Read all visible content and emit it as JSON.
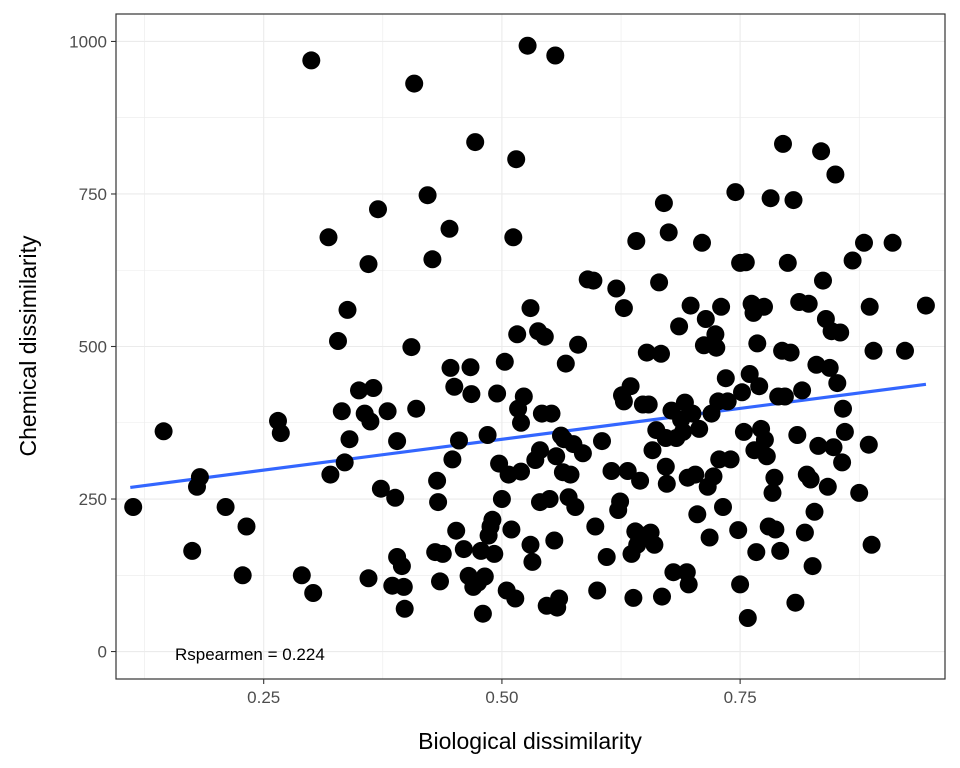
{
  "chart_data": {
    "type": "scatter",
    "title": "",
    "xlabel": "Biological dissimilarity",
    "ylabel": "Chemical dissimilarity",
    "xlim": [
      0.095,
      0.965
    ],
    "ylim": [
      -45,
      1045
    ],
    "x_ticks": [
      0.25,
      0.5,
      0.75
    ],
    "x_tick_labels": [
      "0.25",
      "0.50",
      "0.75"
    ],
    "y_ticks": [
      0,
      250,
      500,
      750,
      1000
    ],
    "y_tick_labels": [
      "0",
      "250",
      "500",
      "750",
      "1000"
    ],
    "grid": true,
    "legend": "none",
    "colors": {
      "points": "#000000",
      "trend": "#3366ff",
      "grid": "#ebebeb",
      "panel_border": "#333333"
    },
    "annotation": "Rspearmen = 0.224",
    "trend_line": {
      "x": [
        0.11,
        0.945
      ],
      "y": [
        269,
        438
      ]
    },
    "points": [
      [
        0.113,
        237
      ],
      [
        0.145,
        361
      ],
      [
        0.175,
        165
      ],
      [
        0.18,
        270
      ],
      [
        0.183,
        286
      ],
      [
        0.21,
        237
      ],
      [
        0.228,
        125
      ],
      [
        0.232,
        205
      ],
      [
        0.265,
        378
      ],
      [
        0.268,
        358
      ],
      [
        0.29,
        125
      ],
      [
        0.3,
        969
      ],
      [
        0.302,
        96
      ],
      [
        0.318,
        679
      ],
      [
        0.32,
        290
      ],
      [
        0.328,
        509
      ],
      [
        0.332,
        394
      ],
      [
        0.335,
        310
      ],
      [
        0.338,
        560
      ],
      [
        0.34,
        348
      ],
      [
        0.35,
        428
      ],
      [
        0.356,
        390
      ],
      [
        0.36,
        635
      ],
      [
        0.36,
        120
      ],
      [
        0.362,
        377
      ],
      [
        0.365,
        432
      ],
      [
        0.37,
        725
      ],
      [
        0.373,
        267
      ],
      [
        0.38,
        394
      ],
      [
        0.385,
        108
      ],
      [
        0.388,
        252
      ],
      [
        0.39,
        155
      ],
      [
        0.39,
        345
      ],
      [
        0.395,
        140
      ],
      [
        0.397,
        106
      ],
      [
        0.398,
        70
      ],
      [
        0.405,
        499
      ],
      [
        0.408,
        931
      ],
      [
        0.41,
        398
      ],
      [
        0.422,
        748
      ],
      [
        0.427,
        643
      ],
      [
        0.43,
        163
      ],
      [
        0.432,
        280
      ],
      [
        0.433,
        245
      ],
      [
        0.435,
        115
      ],
      [
        0.438,
        160
      ],
      [
        0.445,
        693
      ],
      [
        0.446,
        465
      ],
      [
        0.448,
        315
      ],
      [
        0.45,
        434
      ],
      [
        0.452,
        198
      ],
      [
        0.455,
        346
      ],
      [
        0.46,
        168
      ],
      [
        0.465,
        124
      ],
      [
        0.467,
        466
      ],
      [
        0.468,
        422
      ],
      [
        0.47,
        106
      ],
      [
        0.472,
        835
      ],
      [
        0.475,
        113
      ],
      [
        0.478,
        165
      ],
      [
        0.48,
        62
      ],
      [
        0.482,
        123
      ],
      [
        0.485,
        355
      ],
      [
        0.486,
        190
      ],
      [
        0.488,
        205
      ],
      [
        0.49,
        216
      ],
      [
        0.492,
        160
      ],
      [
        0.495,
        423
      ],
      [
        0.497,
        308
      ],
      [
        0.5,
        250
      ],
      [
        0.503,
        475
      ],
      [
        0.505,
        100
      ],
      [
        0.507,
        290
      ],
      [
        0.51,
        200
      ],
      [
        0.512,
        679
      ],
      [
        0.514,
        87
      ],
      [
        0.515,
        807
      ],
      [
        0.516,
        520
      ],
      [
        0.517,
        398
      ],
      [
        0.52,
        375
      ],
      [
        0.52,
        295
      ],
      [
        0.523,
        418
      ],
      [
        0.527,
        993
      ],
      [
        0.53,
        563
      ],
      [
        0.53,
        175
      ],
      [
        0.532,
        147
      ],
      [
        0.535,
        314
      ],
      [
        0.538,
        525
      ],
      [
        0.54,
        245
      ],
      [
        0.54,
        330
      ],
      [
        0.542,
        390
      ],
      [
        0.545,
        516
      ],
      [
        0.547,
        75
      ],
      [
        0.55,
        250
      ],
      [
        0.552,
        390
      ],
      [
        0.555,
        182
      ],
      [
        0.556,
        977
      ],
      [
        0.557,
        320
      ],
      [
        0.558,
        72
      ],
      [
        0.56,
        87
      ],
      [
        0.562,
        354
      ],
      [
        0.564,
        294
      ],
      [
        0.565,
        348
      ],
      [
        0.567,
        472
      ],
      [
        0.57,
        253
      ],
      [
        0.572,
        290
      ],
      [
        0.575,
        340
      ],
      [
        0.577,
        237
      ],
      [
        0.58,
        503
      ],
      [
        0.585,
        325
      ],
      [
        0.59,
        610
      ],
      [
        0.596,
        608
      ],
      [
        0.598,
        205
      ],
      [
        0.6,
        100
      ],
      [
        0.605,
        345
      ],
      [
        0.61,
        155
      ],
      [
        0.615,
        296
      ],
      [
        0.62,
        595
      ],
      [
        0.622,
        232
      ],
      [
        0.624,
        246
      ],
      [
        0.626,
        420
      ],
      [
        0.628,
        410
      ],
      [
        0.628,
        563
      ],
      [
        0.632,
        296
      ],
      [
        0.635,
        435
      ],
      [
        0.636,
        160
      ],
      [
        0.638,
        88
      ],
      [
        0.64,
        197
      ],
      [
        0.641,
        673
      ],
      [
        0.642,
        175
      ],
      [
        0.645,
        280
      ],
      [
        0.648,
        405
      ],
      [
        0.65,
        190
      ],
      [
        0.652,
        490
      ],
      [
        0.654,
        405
      ],
      [
        0.656,
        195
      ],
      [
        0.658,
        330
      ],
      [
        0.66,
        175
      ],
      [
        0.662,
        363
      ],
      [
        0.665,
        605
      ],
      [
        0.667,
        488
      ],
      [
        0.668,
        90
      ],
      [
        0.67,
        735
      ],
      [
        0.672,
        303
      ],
      [
        0.672,
        350
      ],
      [
        0.673,
        275
      ],
      [
        0.675,
        687
      ],
      [
        0.678,
        395
      ],
      [
        0.68,
        130
      ],
      [
        0.683,
        350
      ],
      [
        0.686,
        533
      ],
      [
        0.688,
        380
      ],
      [
        0.69,
        360
      ],
      [
        0.692,
        408
      ],
      [
        0.694,
        130
      ],
      [
        0.695,
        285
      ],
      [
        0.696,
        110
      ],
      [
        0.698,
        567
      ],
      [
        0.7,
        390
      ],
      [
        0.703,
        290
      ],
      [
        0.705,
        225
      ],
      [
        0.707,
        365
      ],
      [
        0.71,
        670
      ],
      [
        0.712,
        502
      ],
      [
        0.714,
        545
      ],
      [
        0.716,
        270
      ],
      [
        0.718,
        187
      ],
      [
        0.72,
        390
      ],
      [
        0.722,
        287
      ],
      [
        0.724,
        520
      ],
      [
        0.725,
        498
      ],
      [
        0.727,
        410
      ],
      [
        0.728,
        315
      ],
      [
        0.73,
        565
      ],
      [
        0.732,
        237
      ],
      [
        0.735,
        448
      ],
      [
        0.737,
        410
      ],
      [
        0.74,
        315
      ],
      [
        0.745,
        753
      ],
      [
        0.748,
        199
      ],
      [
        0.75,
        110
      ],
      [
        0.75,
        637
      ],
      [
        0.752,
        425
      ],
      [
        0.754,
        360
      ],
      [
        0.756,
        638
      ],
      [
        0.758,
        55
      ],
      [
        0.76,
        455
      ],
      [
        0.762,
        570
      ],
      [
        0.764,
        555
      ],
      [
        0.765,
        330
      ],
      [
        0.767,
        163
      ],
      [
        0.768,
        505
      ],
      [
        0.77,
        435
      ],
      [
        0.772,
        365
      ],
      [
        0.775,
        565
      ],
      [
        0.776,
        347
      ],
      [
        0.778,
        320
      ],
      [
        0.78,
        205
      ],
      [
        0.782,
        743
      ],
      [
        0.784,
        260
      ],
      [
        0.786,
        285
      ],
      [
        0.787,
        200
      ],
      [
        0.79,
        418
      ],
      [
        0.792,
        165
      ],
      [
        0.794,
        493
      ],
      [
        0.795,
        832
      ],
      [
        0.797,
        418
      ],
      [
        0.8,
        637
      ],
      [
        0.803,
        490
      ],
      [
        0.806,
        740
      ],
      [
        0.808,
        80
      ],
      [
        0.81,
        355
      ],
      [
        0.812,
        573
      ],
      [
        0.815,
        428
      ],
      [
        0.818,
        195
      ],
      [
        0.82,
        290
      ],
      [
        0.822,
        570
      ],
      [
        0.824,
        282
      ],
      [
        0.826,
        140
      ],
      [
        0.828,
        229
      ],
      [
        0.83,
        470
      ],
      [
        0.832,
        337
      ],
      [
        0.835,
        820
      ],
      [
        0.837,
        608
      ],
      [
        0.84,
        545
      ],
      [
        0.842,
        270
      ],
      [
        0.844,
        465
      ],
      [
        0.846,
        525
      ],
      [
        0.848,
        335
      ],
      [
        0.85,
        782
      ],
      [
        0.852,
        440
      ],
      [
        0.855,
        523
      ],
      [
        0.857,
        310
      ],
      [
        0.858,
        398
      ],
      [
        0.86,
        360
      ],
      [
        0.868,
        641
      ],
      [
        0.875,
        260
      ],
      [
        0.88,
        670
      ],
      [
        0.885,
        339
      ],
      [
        0.886,
        565
      ],
      [
        0.888,
        175
      ],
      [
        0.89,
        493
      ],
      [
        0.91,
        670
      ],
      [
        0.923,
        493
      ],
      [
        0.945,
        567
      ]
    ]
  }
}
